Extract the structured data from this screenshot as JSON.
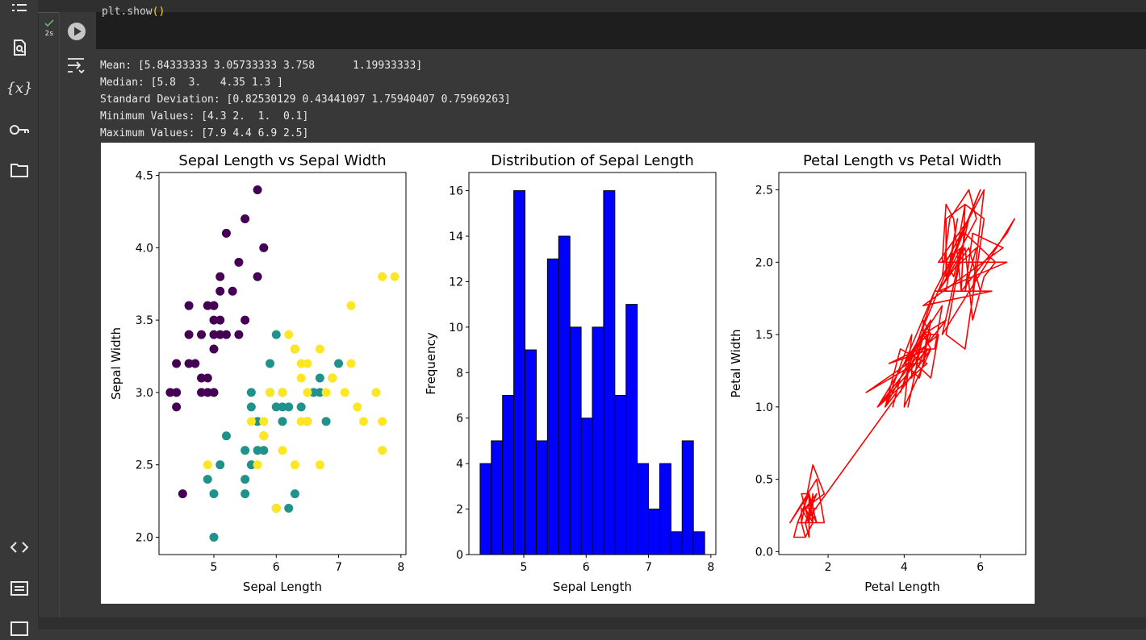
{
  "sidebar": {
    "items": [
      {
        "icon": "table-of-contents-icon"
      },
      {
        "icon": "find-replace-icon"
      },
      {
        "icon": "variables-icon",
        "label": "{x}"
      },
      {
        "icon": "secrets-key-icon"
      },
      {
        "icon": "files-folder-icon"
      },
      {
        "icon": "code-snippets-icon"
      },
      {
        "icon": "command-palette-icon"
      },
      {
        "icon": "terminal-icon"
      }
    ]
  },
  "cell": {
    "status_time": "2s",
    "code_fn": "plt.show",
    "code_parens": "()"
  },
  "output": {
    "lines": [
      "Mean: [5.84333333 3.05733333 3.758      1.19933333]",
      "Median: [5.8  3.   4.35 1.3 ]",
      "Standard Deviation: [0.82530129 0.43441097 1.75940407 0.75969263]",
      "Minimum Values: [4.3 2.  1.  0.1]",
      "Maximum Values: [7.9 4.4 6.9 2.5]"
    ]
  },
  "chart_data": [
    {
      "type": "scatter",
      "title": "Sepal Length vs Sepal Width",
      "xlabel": "Sepal Length",
      "ylabel": "Sepal Width",
      "xlim": [
        4.12,
        8.08
      ],
      "ylim": [
        1.88,
        4.52
      ],
      "xticks": [
        5,
        6,
        7,
        8
      ],
      "yticks": [
        2.0,
        2.5,
        3.0,
        3.5,
        4.0,
        4.5
      ],
      "colors": [
        "#440154",
        "#21918c",
        "#fde725"
      ],
      "series": [
        {
          "x": [
            4.3,
            4.4,
            4.4,
            4.4,
            4.5,
            4.6,
            4.6,
            4.6,
            4.7,
            4.8,
            4.8,
            4.8,
            4.9,
            4.9,
            4.9,
            5.0,
            5.0,
            5.0,
            5.0,
            5.0,
            5.1,
            5.1,
            5.1,
            5.1,
            5.2,
            5.2,
            5.3,
            5.4,
            5.4,
            5.5,
            5.5,
            5.7,
            5.7,
            5.8
          ],
          "y": [
            3.0,
            3.2,
            3.0,
            2.9,
            2.3,
            3.6,
            3.4,
            3.2,
            3.2,
            3.4,
            3.0,
            3.1,
            3.6,
            3.1,
            3.0,
            3.6,
            3.5,
            3.4,
            3.3,
            3.0,
            3.8,
            3.7,
            3.5,
            3.4,
            4.1,
            3.4,
            3.7,
            3.9,
            3.4,
            4.2,
            3.5,
            4.4,
            3.8,
            4.0
          ]
        },
        {
          "x": [
            4.9,
            5.0,
            5.0,
            5.1,
            5.2,
            5.5,
            5.5,
            5.5,
            5.6,
            5.6,
            5.6,
            5.7,
            5.7,
            5.8,
            5.8,
            5.9,
            5.9,
            6.0,
            6.0,
            6.0,
            6.1,
            6.1,
            6.1,
            6.2,
            6.2,
            6.3,
            6.3,
            6.4,
            6.5,
            6.6,
            6.7,
            6.7,
            6.8,
            6.9,
            7.0
          ],
          "y": [
            2.4,
            2.0,
            2.3,
            2.5,
            2.7,
            2.3,
            2.4,
            2.6,
            2.5,
            2.9,
            3.0,
            2.6,
            2.8,
            2.7,
            2.6,
            3.2,
            3.0,
            3.4,
            2.9,
            2.2,
            2.8,
            3.0,
            2.9,
            2.2,
            2.9,
            3.3,
            2.3,
            2.9,
            2.8,
            3.0,
            3.1,
            3.0,
            2.8,
            3.1,
            3.2
          ]
        },
        {
          "x": [
            4.9,
            5.6,
            5.7,
            5.8,
            5.8,
            5.9,
            6.0,
            6.1,
            6.1,
            6.2,
            6.3,
            6.3,
            6.4,
            6.4,
            6.4,
            6.5,
            6.5,
            6.5,
            6.7,
            6.7,
            6.8,
            6.9,
            7.1,
            7.2,
            7.2,
            7.3,
            7.4,
            7.6,
            7.7,
            7.7,
            7.7,
            7.9
          ],
          "y": [
            2.5,
            2.8,
            2.5,
            2.7,
            2.8,
            3.0,
            2.2,
            2.6,
            3.0,
            3.4,
            3.3,
            2.5,
            3.2,
            2.8,
            3.1,
            3.0,
            3.2,
            2.8,
            2.5,
            3.3,
            3.0,
            3.1,
            3.0,
            3.6,
            3.2,
            2.9,
            2.8,
            3.0,
            3.8,
            2.6,
            2.8,
            3.8
          ]
        }
      ]
    },
    {
      "type": "bar",
      "title": "Distribution of Sepal Length",
      "xlabel": "Sepal Length",
      "ylabel": "Frequency",
      "xlim": [
        4.12,
        8.08
      ],
      "ylim": [
        0,
        16.8
      ],
      "xticks": [
        5,
        6,
        7,
        8
      ],
      "yticks": [
        0,
        2,
        4,
        6,
        8,
        10,
        12,
        14,
        16
      ],
      "bin_start": 4.3,
      "bin_width": 0.18,
      "values": [
        4,
        5,
        7,
        16,
        9,
        5,
        13,
        14,
        10,
        6,
        10,
        16,
        7,
        11,
        4,
        2,
        4,
        1,
        5,
        1
      ],
      "color": "#0000ff"
    },
    {
      "type": "line",
      "title": "Petal Length vs Petal Width",
      "xlabel": "Petal Length",
      "ylabel": "Petal Width",
      "xlim": [
        0.705,
        7.195
      ],
      "ylim": [
        -0.02,
        2.62
      ],
      "xticks": [
        2,
        4,
        6
      ],
      "yticks": [
        0.0,
        0.5,
        1.0,
        1.5,
        2.0,
        2.5
      ],
      "color": "#ff0000",
      "x": [
        1.4,
        1.4,
        1.3,
        1.5,
        1.4,
        1.7,
        1.4,
        1.5,
        1.4,
        1.5,
        1.5,
        1.6,
        1.4,
        1.1,
        1.2,
        1.5,
        1.3,
        1.4,
        1.7,
        1.5,
        1.7,
        1.5,
        1.0,
        1.7,
        1.9,
        1.6,
        1.6,
        1.5,
        1.4,
        1.6,
        1.6,
        1.5,
        1.5,
        1.4,
        1.5,
        1.2,
        1.3,
        1.4,
        1.3,
        1.5,
        1.3,
        1.3,
        1.3,
        1.6,
        1.9,
        1.4,
        1.6,
        1.4,
        1.5,
        1.4,
        4.7,
        4.5,
        4.9,
        4.0,
        4.6,
        4.5,
        4.7,
        3.3,
        4.6,
        3.9,
        3.5,
        4.2,
        4.0,
        4.7,
        3.6,
        4.4,
        4.5,
        4.1,
        4.5,
        3.9,
        4.8,
        4.0,
        4.9,
        4.7,
        4.3,
        4.4,
        4.8,
        5.0,
        4.5,
        3.5,
        3.8,
        3.7,
        3.9,
        5.1,
        4.5,
        4.5,
        4.7,
        4.4,
        4.1,
        4.0,
        4.4,
        4.6,
        4.0,
        3.3,
        4.2,
        4.2,
        4.2,
        4.3,
        3.0,
        4.1,
        6.0,
        5.1,
        5.9,
        5.6,
        5.8,
        6.6,
        4.5,
        6.3,
        5.8,
        6.1,
        5.1,
        5.3,
        5.5,
        5.0,
        5.1,
        5.3,
        5.5,
        6.7,
        6.9,
        5.0,
        5.7,
        4.9,
        6.7,
        4.9,
        5.7,
        6.0,
        4.8,
        4.9,
        5.6,
        5.8,
        6.1,
        6.4,
        5.6,
        5.1,
        5.6,
        6.1,
        5.6,
        5.5,
        4.8,
        5.4,
        5.6,
        5.1,
        5.1,
        5.9,
        5.7,
        5.2,
        5.0,
        5.2,
        5.4,
        5.1
      ],
      "y": [
        0.2,
        0.2,
        0.2,
        0.2,
        0.2,
        0.4,
        0.3,
        0.2,
        0.2,
        0.1,
        0.2,
        0.2,
        0.1,
        0.1,
        0.2,
        0.4,
        0.4,
        0.3,
        0.3,
        0.3,
        0.2,
        0.4,
        0.2,
        0.5,
        0.2,
        0.2,
        0.4,
        0.2,
        0.2,
        0.2,
        0.2,
        0.4,
        0.1,
        0.2,
        0.2,
        0.2,
        0.2,
        0.1,
        0.2,
        0.2,
        0.3,
        0.3,
        0.2,
        0.6,
        0.4,
        0.3,
        0.2,
        0.2,
        0.2,
        0.2,
        1.4,
        1.5,
        1.5,
        1.3,
        1.5,
        1.3,
        1.6,
        1.0,
        1.3,
        1.4,
        1.0,
        1.5,
        1.0,
        1.4,
        1.3,
        1.4,
        1.5,
        1.0,
        1.5,
        1.1,
        1.8,
        1.3,
        1.5,
        1.2,
        1.3,
        1.4,
        1.4,
        1.7,
        1.5,
        1.0,
        1.1,
        1.0,
        1.2,
        1.6,
        1.5,
        1.6,
        1.5,
        1.3,
        1.3,
        1.3,
        1.2,
        1.4,
        1.2,
        1.0,
        1.3,
        1.2,
        1.3,
        1.3,
        1.1,
        1.3,
        2.5,
        1.9,
        2.1,
        1.8,
        2.2,
        2.1,
        1.7,
        1.8,
        1.8,
        2.5,
        2.0,
        1.9,
        2.1,
        2.0,
        2.4,
        2.3,
        1.8,
        2.2,
        2.3,
        1.5,
        2.3,
        2.0,
        2.0,
        1.8,
        2.1,
        1.8,
        1.8,
        1.8,
        2.1,
        1.6,
        1.9,
        2.0,
        2.2,
        1.5,
        1.4,
        2.3,
        2.4,
        1.8,
        1.8,
        2.1,
        2.4,
        2.3,
        1.9,
        2.3,
        2.5,
        2.3,
        1.9,
        2.0,
        2.3,
        1.8
      ]
    }
  ]
}
